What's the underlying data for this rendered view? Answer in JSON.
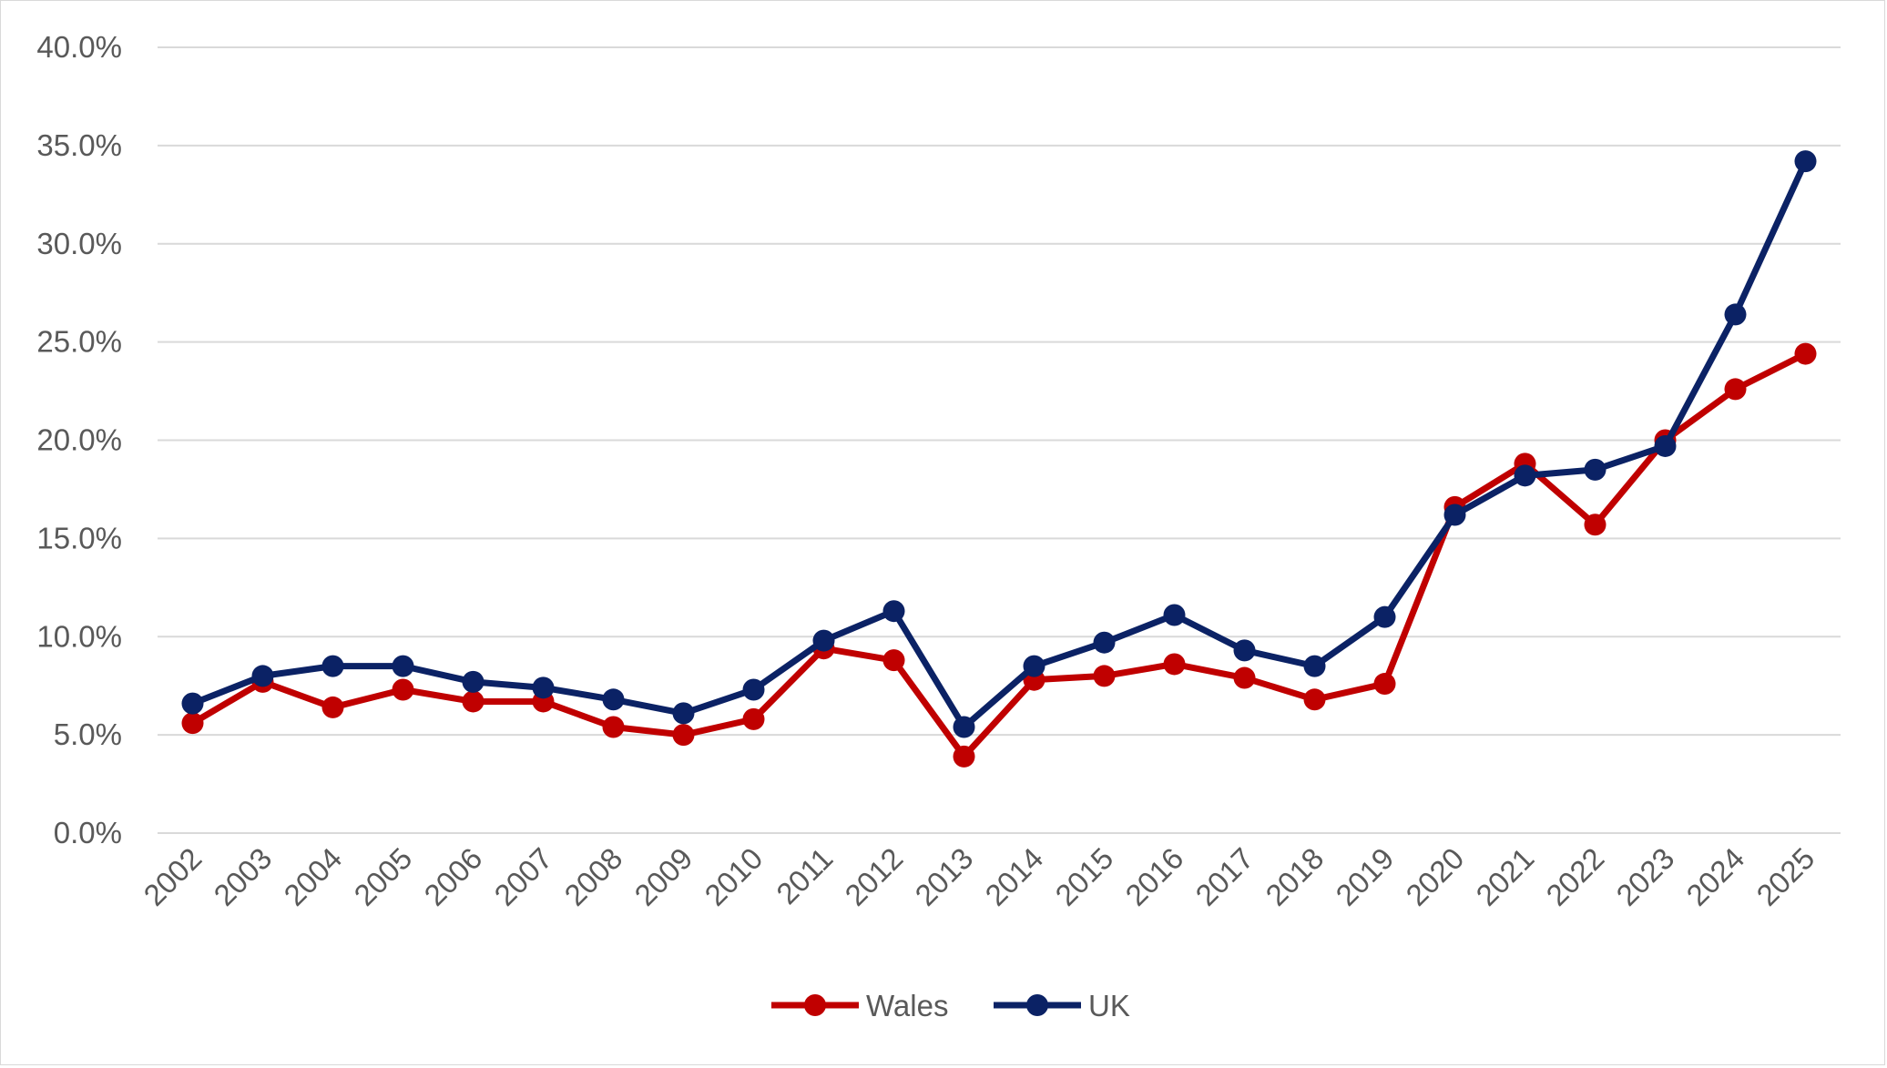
{
  "chart_data": {
    "type": "line",
    "title": "",
    "xlabel": "",
    "ylabel": "",
    "ylim": [
      0,
      40
    ],
    "yticks": [
      "0.0%",
      "5.0%",
      "10.0%",
      "15.0%",
      "20.0%",
      "25.0%",
      "30.0%",
      "35.0%",
      "40.0%"
    ],
    "grid": "horizontal",
    "legend_position": "bottom",
    "x": [
      "2002",
      "2003",
      "2004",
      "2005",
      "2006",
      "2007",
      "2008",
      "2009",
      "2010",
      "2011",
      "2012",
      "2013",
      "2014",
      "2015",
      "2016",
      "2017",
      "2018",
      "2019",
      "2020",
      "2021",
      "2022",
      "2023",
      "2024",
      "2025"
    ],
    "series": [
      {
        "name": "Wales",
        "color": "#c00000",
        "values": [
          5.6,
          7.7,
          6.4,
          7.3,
          6.7,
          6.7,
          5.4,
          5.0,
          5.8,
          9.4,
          8.8,
          3.9,
          7.8,
          8.0,
          8.6,
          7.9,
          6.8,
          7.6,
          16.6,
          18.8,
          15.7,
          20.0,
          22.6,
          24.4
        ]
      },
      {
        "name": "UK",
        "color": "#0b2265",
        "values": [
          6.6,
          8.0,
          8.5,
          8.5,
          7.7,
          7.4,
          6.8,
          6.1,
          7.3,
          9.8,
          11.3,
          5.4,
          8.5,
          9.7,
          11.1,
          9.3,
          8.5,
          11.0,
          16.2,
          18.2,
          18.5,
          19.7,
          26.4,
          34.2
        ]
      }
    ]
  }
}
